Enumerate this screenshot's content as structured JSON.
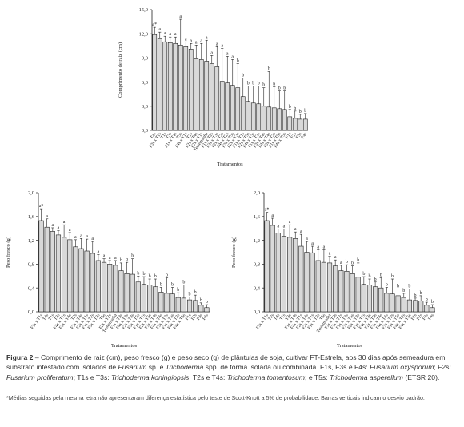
{
  "figure": {
    "caption_label": "Figura 2",
    "caption_dash": " – ",
    "caption_text_1": "Comprimento de raiz (cm), peso fresco (g) e peso seco (g) de plântulas de soja, cultivar FT-Estrela, aos 30 dias após semeadura em substrato infestado com isolados de ",
    "caption_it_1": "Fusarium",
    "caption_text_2": " sp. e ",
    "caption_it_2": "Trichoderma",
    "caption_text_3": " spp. de forma isolada ou combinada. F1s, F3s e F4s: ",
    "caption_it_3": "Fusarium oxysporum",
    "caption_text_4": "; F2s: ",
    "caption_it_4": "Fusarium proliferatum",
    "caption_text_5": "; T1s e T3s: ",
    "caption_it_5": "Trichoderma koningiopsis",
    "caption_text_6": "; T2s e T4s: ",
    "caption_it_6": "Trichoderma tomentosum",
    "caption_text_7": "; e T5s: ",
    "caption_it_7": "Trichoderma asperellum",
    "caption_text_8": " (ETSR 20).",
    "footnote": "*Médias seguidas pela mesma letra não apresentaram diferença estatística pelo teste de Scott-Knott a 5% de probabilidade. Barras verticais indicam o desvio padrão."
  },
  "colors": {
    "bar_fill": "#d9d9d9",
    "bar_stroke": "#222222",
    "axis": "#222222",
    "text": "#222222"
  },
  "chart_data": [
    {
      "type": "bar",
      "ylabel": "Comprimento de raiz (cm)",
      "xlabel": "Tratamentos",
      "ylim": [
        0,
        15
      ],
      "yticks": [
        "0,0",
        "3,0",
        "6,0",
        "9,0",
        "12,0",
        "15,0"
      ],
      "categories": [
        "T4s",
        "F3s x T1s",
        "T1s",
        "T3s",
        "F1s x T4s",
        "T5s",
        "F4s x T1s",
        "T2s",
        "F2s x T4s",
        "F2s x T1s",
        "Testemunha",
        "F1s x T2s",
        "F3s x T3s",
        "F2s x T2s",
        "F4s x T2s",
        "F3s x T5s",
        "F2s x T3s",
        "F1s x T1s",
        "F2s x T5s",
        "F4s x T3s",
        "F1s x T3s",
        "F3s x T4s",
        "F4s x T4s",
        "F3s x T2s",
        "F1s x T5s",
        "F4s x T5s",
        "F1s",
        "F2s",
        "F3s",
        "F4s"
      ],
      "values": [
        11.9,
        11.4,
        11.0,
        10.9,
        10.8,
        10.6,
        10.4,
        10.1,
        8.9,
        8.8,
        8.6,
        8.3,
        7.9,
        6.1,
        5.9,
        5.6,
        5.3,
        4.2,
        3.6,
        3.4,
        3.3,
        3.0,
        2.9,
        2.8,
        2.7,
        2.6,
        1.7,
        1.5,
        1.4,
        1.4
      ],
      "errors": [
        0.9,
        0.8,
        0.7,
        0.7,
        0.8,
        3.2,
        0.6,
        0.7,
        1.7,
        2.0,
        2.6,
        1.0,
        2.5,
        4.1,
        3.3,
        3.2,
        3.0,
        2.3,
        1.9,
        2.1,
        2.2,
        2.3,
        4.4,
        2.6,
        2.2,
        2.3,
        0.9,
        0.9,
        0.6,
        0.7
      ],
      "letters": [
        "a*",
        "a",
        "a",
        "a",
        "a",
        "a",
        "a",
        "a",
        "a",
        "a",
        "a",
        "a",
        "a",
        "a",
        "a",
        "a",
        "b",
        "b",
        "b",
        "b",
        "b",
        "b",
        "b",
        "b",
        "b",
        "b",
        "b",
        "b",
        "b",
        "b"
      ]
    },
    {
      "type": "bar",
      "ylabel": "Peso fresco (g)",
      "xlabel": "Tratamentos",
      "ylim": [
        0,
        2
      ],
      "yticks": [
        "0,0",
        "0,4",
        "0,8",
        "1,2",
        "1,6",
        "2,0"
      ],
      "categories": [
        "F3s x T1s",
        "T4s",
        "T1s",
        "T3s",
        "F4s x T1s",
        "F1s x T4s",
        "T2s",
        "F2s x T4s",
        "F2s x T1s",
        "F1s x T2s",
        "F3s x T3s",
        "T5s",
        "F2s x T2s",
        "Testemunha",
        "F1s x T3s",
        "F4s x T3s",
        "F2s x T3s",
        "F3s x T5s",
        "F1s x T1s",
        "F2s x T5s",
        "F3s x T4s",
        "F4s x T4s",
        "F3s x T2s",
        "F1s x T5s",
        "F4s x T2s",
        "F4s x T5s",
        "F1s",
        "F2s",
        "F3s",
        "F4s"
      ],
      "values": [
        1.53,
        1.42,
        1.35,
        1.29,
        1.25,
        1.21,
        1.09,
        1.06,
        1.02,
        0.98,
        0.86,
        0.83,
        0.8,
        0.78,
        0.69,
        0.64,
        0.63,
        0.5,
        0.46,
        0.45,
        0.42,
        0.33,
        0.31,
        0.3,
        0.24,
        0.23,
        0.2,
        0.19,
        0.11,
        0.07
      ],
      "errors": [
        0.2,
        0.14,
        0.06,
        0.07,
        0.21,
        0.12,
        0.12,
        0.17,
        0.2,
        0.2,
        0.1,
        0.06,
        0.06,
        0.08,
        0.13,
        0.19,
        0.26,
        0.1,
        0.13,
        0.1,
        0.13,
        0.08,
        0.26,
        0.11,
        0.08,
        0.22,
        0.05,
        0.09,
        0.04,
        0.05
      ],
      "letters": [
        "a*",
        "a",
        "a",
        "a",
        "a",
        "a",
        "a",
        "a",
        "a",
        "a",
        "a",
        "a",
        "a",
        "a",
        "b",
        "b",
        "b",
        "b",
        "b",
        "b",
        "b",
        "b",
        "b",
        "b",
        "b",
        "b",
        "b",
        "b",
        "b",
        "b"
      ]
    },
    {
      "type": "bar",
      "ylabel": "Peso fresco (g)",
      "xlabel": "Tratamentos",
      "ylim": [
        0,
        2
      ],
      "yticks": [
        "0,0",
        "0,4",
        "0,8",
        "1,2",
        "1,6",
        "2,0"
      ],
      "categories": [
        "F3s x T1s",
        "T2s",
        "T4s",
        "T1s",
        "T3s",
        "F1s x T4s",
        "F4s x T1s",
        "F2s x T4s",
        "F2s x T1s",
        "F1s x T2s",
        "T5s",
        "Testemunha",
        "F3s x T3s",
        "F2s x T2s",
        "F1s x T3s",
        "F3s x T5s",
        "F2s x T3s",
        "F1s x T1s",
        "F4s x T3s",
        "F2s x T5s",
        "F3s x T4s",
        "F4s x T4s",
        "F3s x T2s",
        "F1s x T5s",
        "F4s x T2s",
        "F4s x T5s",
        "F1s",
        "F2s",
        "F3s",
        "F4s"
      ],
      "values": [
        1.53,
        1.45,
        1.32,
        1.27,
        1.25,
        1.23,
        1.1,
        1.0,
        0.99,
        0.86,
        0.83,
        0.82,
        0.77,
        0.69,
        0.68,
        0.64,
        0.58,
        0.46,
        0.45,
        0.42,
        0.4,
        0.31,
        0.3,
        0.27,
        0.24,
        0.2,
        0.19,
        0.18,
        0.11,
        0.07
      ],
      "errors": [
        0.14,
        0.12,
        0.07,
        0.12,
        0.21,
        0.11,
        0.2,
        0.18,
        0.11,
        0.18,
        0.21,
        0.11,
        0.1,
        0.09,
        0.11,
        0.13,
        0.24,
        0.13,
        0.1,
        0.08,
        0.17,
        0.1,
        0.25,
        0.11,
        0.07,
        0.18,
        0.04,
        0.09,
        0.05,
        0.05
      ],
      "letters": [
        "a*",
        "a",
        "a",
        "a",
        "a",
        "a",
        "a",
        "a",
        "a",
        "a",
        "a",
        "a",
        "a",
        "a",
        "b",
        "b",
        "b",
        "b",
        "b",
        "b",
        "b",
        "b",
        "b",
        "b",
        "b",
        "b",
        "b",
        "b",
        "b",
        "b"
      ]
    }
  ]
}
